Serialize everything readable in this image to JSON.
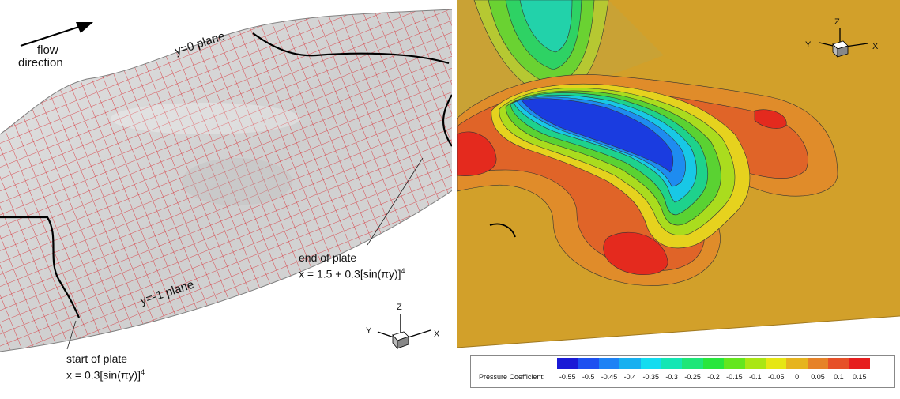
{
  "left": {
    "flow_label_line1": "flow",
    "flow_label_line2": "direction",
    "y0_label": "y=0 plane",
    "ym1_label": "y=-1 plane",
    "end_label_line1": "end of plate",
    "end_label_line2": "x = 1.5 + 0.3[sin(πy)]",
    "end_exponent": "4",
    "start_label_line1": "start of plate",
    "start_label_line2": "x = 0.3[sin(πy)]",
    "start_exponent": "4",
    "axes": {
      "z": "Z",
      "y": "Y",
      "x": "X"
    },
    "colors": {
      "surface": "#d4d4d4",
      "grid": "#d8232a",
      "plate_edge": "#000000"
    }
  },
  "right": {
    "axes": {
      "z": "Z",
      "y": "Y",
      "x": "X"
    },
    "legend_title": "Pressure Coefficient:",
    "legend_ticks": [
      "-0.55",
      "-0.5",
      "-0.45",
      "-0.4",
      "-0.35",
      "-0.3",
      "-0.25",
      "-0.2",
      "-0.15",
      "-0.1",
      "-0.05",
      "0",
      "0.05",
      "0.1",
      "0.15"
    ],
    "legend_colors": [
      "#1a1ad6",
      "#1e50f0",
      "#1e82f5",
      "#18b0f0",
      "#14dcf0",
      "#14e6b4",
      "#1ee678",
      "#28e63c",
      "#64e61e",
      "#aae614",
      "#e6e614",
      "#e6b41e",
      "#e68228",
      "#e65028",
      "#e61e1e"
    ]
  }
}
